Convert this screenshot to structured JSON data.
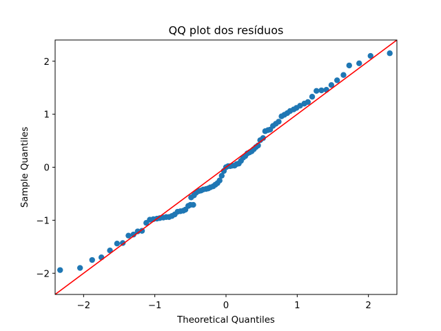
{
  "chart_data": {
    "type": "scatter",
    "title": "QQ plot dos resíduos",
    "xlabel": "Theoretical Quantiles",
    "ylabel": "Sample Quantiles",
    "xlim": [
      -2.4,
      2.4
    ],
    "ylim": [
      -2.4,
      2.4
    ],
    "xticks": [
      -2,
      -1,
      0,
      1,
      2
    ],
    "yticks": [
      -2,
      -1,
      0,
      1,
      2
    ],
    "xtick_labels": [
      "−2",
      "−1",
      "0",
      "1",
      "2"
    ],
    "ytick_labels": [
      "−2",
      "−1",
      "0",
      "1",
      "2"
    ],
    "grid": false,
    "series": [
      {
        "name": "residuals",
        "kind": "points",
        "color": "#1f77b4",
        "points": [
          [
            -2.33,
            -1.94
          ],
          [
            -2.05,
            -1.9
          ],
          [
            -1.88,
            -1.75
          ],
          [
            -1.75,
            -1.7
          ],
          [
            -1.63,
            -1.57
          ],
          [
            -1.53,
            -1.44
          ],
          [
            -1.45,
            -1.43
          ],
          [
            -1.37,
            -1.29
          ],
          [
            -1.3,
            -1.27
          ],
          [
            -1.24,
            -1.21
          ],
          [
            -1.18,
            -1.2
          ],
          [
            -1.12,
            -1.05
          ],
          [
            -1.07,
            -0.99
          ],
          [
            -1.02,
            -0.98
          ],
          [
            -0.97,
            -0.97
          ],
          [
            -0.93,
            -0.96
          ],
          [
            -0.88,
            -0.95
          ],
          [
            -0.84,
            -0.94
          ],
          [
            -0.8,
            -0.94
          ],
          [
            -0.76,
            -0.92
          ],
          [
            -0.72,
            -0.89
          ],
          [
            -0.68,
            -0.84
          ],
          [
            -0.64,
            -0.83
          ],
          [
            -0.6,
            -0.82
          ],
          [
            -0.57,
            -0.8
          ],
          [
            -0.53,
            -0.73
          ],
          [
            -0.5,
            -0.71
          ],
          [
            -0.46,
            -0.71
          ],
          [
            -0.49,
            -0.57
          ],
          [
            -0.45,
            -0.53
          ],
          [
            -0.42,
            -0.48
          ],
          [
            -0.38,
            -0.45
          ],
          [
            -0.35,
            -0.44
          ],
          [
            -0.32,
            -0.42
          ],
          [
            -0.28,
            -0.41
          ],
          [
            -0.25,
            -0.4
          ],
          [
            -0.22,
            -0.38
          ],
          [
            -0.18,
            -0.36
          ],
          [
            -0.15,
            -0.33
          ],
          [
            -0.12,
            -0.3
          ],
          [
            -0.09,
            -0.25
          ],
          [
            -0.06,
            -0.16
          ],
          [
            -0.03,
            -0.07
          ],
          [
            0.0,
            0.0
          ],
          [
            0.03,
            0.02
          ],
          [
            0.06,
            0.02
          ],
          [
            0.09,
            0.03
          ],
          [
            0.12,
            0.03
          ],
          [
            0.15,
            0.06
          ],
          [
            0.18,
            0.07
          ],
          [
            0.21,
            0.12
          ],
          [
            0.24,
            0.18
          ],
          [
            0.27,
            0.21
          ],
          [
            0.3,
            0.26
          ],
          [
            0.33,
            0.28
          ],
          [
            0.36,
            0.3
          ],
          [
            0.39,
            0.34
          ],
          [
            0.42,
            0.38
          ],
          [
            0.45,
            0.41
          ],
          [
            0.48,
            0.51
          ],
          [
            0.52,
            0.55
          ],
          [
            0.55,
            0.68
          ],
          [
            0.59,
            0.7
          ],
          [
            0.62,
            0.71
          ],
          [
            0.66,
            0.78
          ],
          [
            0.7,
            0.82
          ],
          [
            0.74,
            0.86
          ],
          [
            0.78,
            0.96
          ],
          [
            0.82,
            0.99
          ],
          [
            0.86,
            1.02
          ],
          [
            0.9,
            1.06
          ],
          [
            0.95,
            1.09
          ],
          [
            0.99,
            1.12
          ],
          [
            1.04,
            1.16
          ],
          [
            1.1,
            1.2
          ],
          [
            1.15,
            1.23
          ],
          [
            1.21,
            1.33
          ],
          [
            1.27,
            1.44
          ],
          [
            1.34,
            1.45
          ],
          [
            1.41,
            1.46
          ],
          [
            1.48,
            1.55
          ],
          [
            1.56,
            1.64
          ],
          [
            1.65,
            1.74
          ],
          [
            1.73,
            1.92
          ],
          [
            1.87,
            1.96
          ],
          [
            2.03,
            2.1
          ],
          [
            2.3,
            2.15
          ]
        ]
      },
      {
        "name": "reference line (y = x)",
        "kind": "line",
        "color": "#ff0000",
        "from": [
          -2.4,
          -2.4
        ],
        "to": [
          2.4,
          2.4
        ]
      }
    ]
  }
}
